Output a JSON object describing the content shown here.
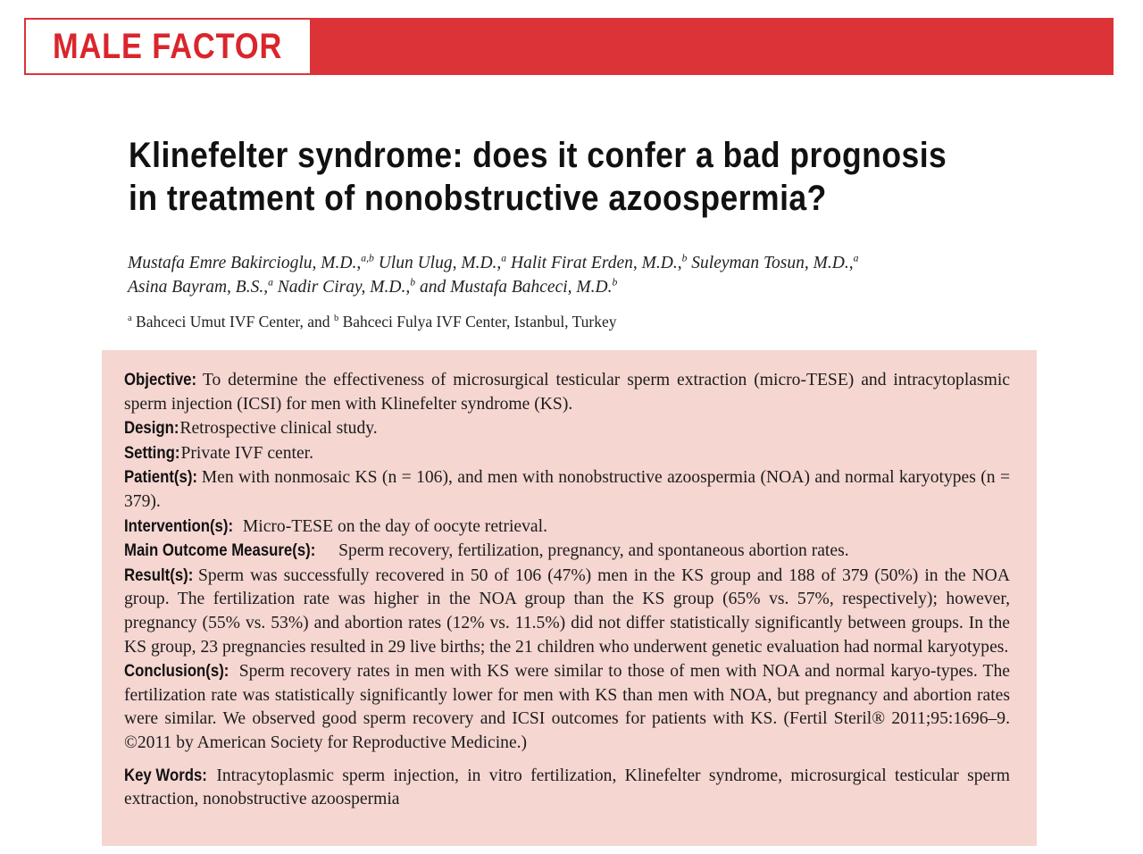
{
  "header": {
    "section_label": "MALE FACTOR",
    "accent_color": "#dc3338"
  },
  "article": {
    "title_lines": [
      "Klinefelter syndrome: does it confer a bad prognosis",
      "in treatment of nonobstructive azoospermia?"
    ],
    "authors": [
      {
        "name": "Mustafa Emre Bakircioglu, M.D.,",
        "sup": "a,b"
      },
      {
        "name": "Ulun Ulug, M.D.,",
        "sup": "a"
      },
      {
        "name": "Halit Firat Erden, M.D.,",
        "sup": "b"
      },
      {
        "name": "Suleyman Tosun, M.D.,",
        "sup": "a"
      },
      {
        "name": "Asina Bayram, B.S.,",
        "sup": "a"
      },
      {
        "name": "Nadir Ciray, M.D.,",
        "sup": "b"
      },
      {
        "name": "and Mustafa Bahceci, M.D.",
        "sup": "b"
      }
    ],
    "affiliation": {
      "a_sup": "a",
      "a_text": "Bahceci Umut IVF Center, and",
      "b_sup": "b",
      "b_text": "Bahceci Fulya IVF Center, Istanbul, Turkey"
    }
  },
  "abstract": {
    "background_color": "#f5d6d1",
    "sections": [
      {
        "label": "Objective:",
        "text": "To determine the effectiveness of microsurgical testicular sperm extraction (micro-TESE) and intracytoplasmic sperm injection (ICSI) for men with Klinefelter syndrome (KS)."
      },
      {
        "label": "Design:",
        "text": "Retrospective clinical study."
      },
      {
        "label": "Setting:",
        "text": "Private IVF center."
      },
      {
        "label": "Patient(s):",
        "text": "Men with nonmosaic KS (n = 106), and men with nonobstructive azoospermia (NOA) and normal karyotypes (n = 379)."
      },
      {
        "label": "Intervention(s):",
        "text": "Micro-TESE on the day of oocyte retrieval."
      },
      {
        "label": "Main Outcome Measure(s):",
        "text": "Sperm recovery, fertilization, pregnancy, and spontaneous abortion rates."
      },
      {
        "label": "Result(s):",
        "text": "Sperm was successfully recovered in 50 of 106 (47%) men in the KS group and 188 of 379 (50%) in the NOA group. The fertilization rate was higher in the NOA group than the KS group (65% vs. 57%, respectively); however, pregnancy (55% vs. 53%) and abortion rates (12% vs. 11.5%) did not differ statistically significantly between groups. In the KS group, 23 pregnancies resulted in 29 live births; the 21 children who underwent genetic evaluation had normal karyotypes."
      },
      {
        "label": "Conclusion(s):",
        "text": "Sperm recovery rates in men with KS were similar to those of men with NOA and normal karyo-types. The fertilization rate was statistically significantly lower for men with KS than men with NOA, but pregnancy and abortion rates were similar. We observed good sperm recovery and ICSI outcomes for patients with KS. (Fertil Steril® 2011;95:1696–9. ©2011 by American Society for Reproductive Medicine.)"
      }
    ],
    "key_words": {
      "label": "Key Words:",
      "text": "Intracytoplasmic sperm injection, in vitro fertilization, Klinefelter syndrome, microsurgical testicular sperm extraction, nonobstructive azoospermia"
    }
  }
}
